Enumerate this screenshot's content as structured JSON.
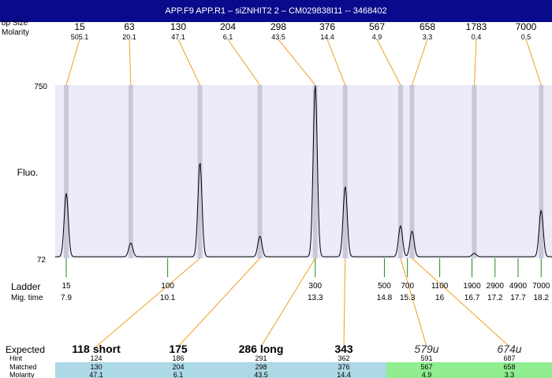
{
  "header": {
    "title": "APP.F9  APP.R1  – siZNHIT2 2 – CM029838I11 -- 3468402"
  },
  "labels": {
    "bp_size": "bp Size",
    "molarity": "Molarity",
    "fluo": "Fluo.",
    "ladder": "Ladder",
    "mig_time": "Mig. time",
    "expected": "Expected",
    "hint": "Hint",
    "matched": "Matched",
    "molarity_bottom": "Molarity"
  },
  "chart_data": {
    "type": "line",
    "title": "",
    "ylabel": "Fluo.",
    "ylim": [
      72,
      750
    ],
    "y_ticks": [
      "750",
      "72"
    ],
    "peaks": [
      {
        "size": "15",
        "molarity": "505.1",
        "time": 7.9,
        "height": 0.37
      },
      {
        "size": "63",
        "molarity": "20.1",
        "time": 9.3,
        "height": 0.08
      },
      {
        "size": "130",
        "molarity": "47.1",
        "time": 10.8,
        "height": 0.55
      },
      {
        "size": "204",
        "molarity": "6.1",
        "time": 12.1,
        "height": 0.12
      },
      {
        "size": "298",
        "molarity": "43.5",
        "time": 13.3,
        "height": 1.0
      },
      {
        "size": "376",
        "molarity": "14.4",
        "time": 13.95,
        "height": 0.41
      },
      {
        "size": "567",
        "molarity": "4.9",
        "time": 15.15,
        "height": 0.18
      },
      {
        "size": "658",
        "molarity": "3.3",
        "time": 15.4,
        "height": 0.15
      },
      {
        "size": "1783",
        "molarity": "0.4",
        "time": 16.75,
        "height": 0.02
      },
      {
        "size": "7000",
        "molarity": "0.5",
        "time": 18.2,
        "height": 0.27
      }
    ],
    "ladder": [
      {
        "size": "15",
        "time": "7.9"
      },
      {
        "size": "100",
        "time": "10.1"
      },
      {
        "size": "300",
        "time": "13.3"
      },
      {
        "size": "500",
        "time": "14.8"
      },
      {
        "size": "700",
        "time": "15.3"
      },
      {
        "size": "1100",
        "time": "16"
      },
      {
        "size": "1900",
        "time": "16.7"
      },
      {
        "size": "2900",
        "time": "17.2"
      },
      {
        "size": "4900",
        "time": "17.7"
      },
      {
        "size": "7000",
        "time": "18.2"
      }
    ],
    "expected": [
      {
        "label": "118 short",
        "hint": "124",
        "matched": "130",
        "molarity": "47.1",
        "style": "bold"
      },
      {
        "label": "175",
        "hint": "186",
        "matched": "204",
        "molarity": "6.1",
        "style": "bold"
      },
      {
        "label": "286 long",
        "hint": "291",
        "matched": "298",
        "molarity": "43.5",
        "style": "bold"
      },
      {
        "label": "343",
        "hint": "362",
        "matched": "376",
        "molarity": "14.4",
        "style": "bold"
      },
      {
        "label": "579u",
        "hint": "591",
        "matched": "567",
        "molarity": "4.9",
        "style": "italic"
      },
      {
        "label": "674u",
        "hint": "687",
        "matched": "658",
        "molarity": "3.3",
        "style": "italic"
      }
    ]
  },
  "colors": {
    "plot_bg": "#ebebfa",
    "band": "#c8c8d8",
    "orange": "#f0a020",
    "ladder_green": "#208a20",
    "row_blue": "#add8e6",
    "row_green": "#90ee90",
    "header_bg": "#0a0a8c"
  }
}
